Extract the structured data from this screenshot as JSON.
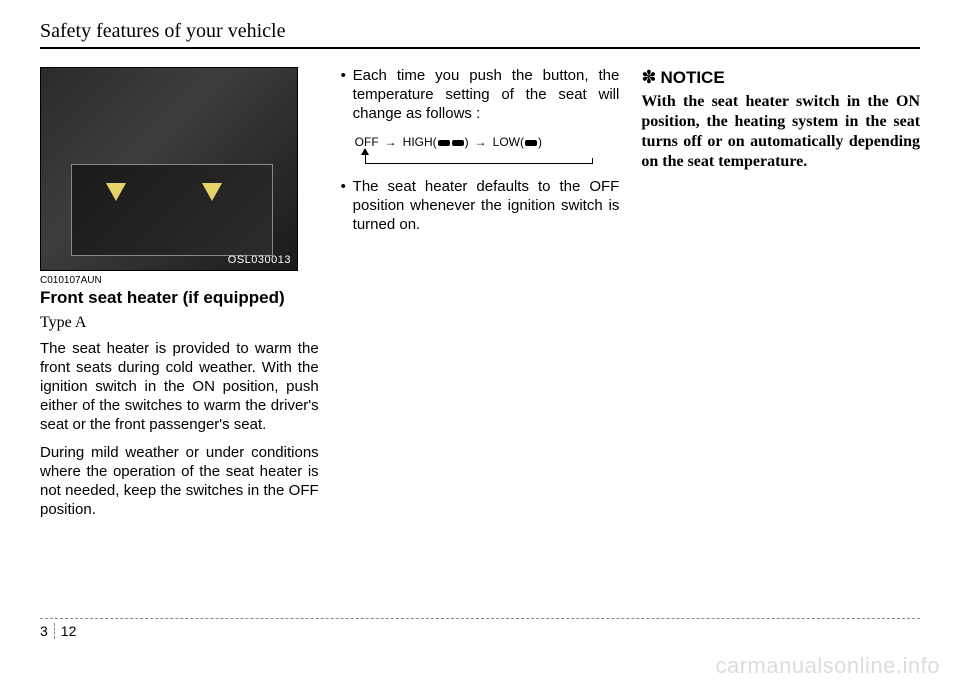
{
  "header": {
    "title": "Safety features of your vehicle"
  },
  "figure": {
    "label": "OSL030013"
  },
  "col1": {
    "code": "C010107AUN",
    "subhead": "Front seat heater (if equipped)",
    "type": "Type A",
    "p1": "The seat heater is provided to warm the front seats during cold weather. With the ignition switch in the ON position, push either of the switches to warm the driver's seat or the front passenger's seat.",
    "p2": "During mild weather or under conditions where the operation of the seat heater is not needed, keep the switches in the  OFF position."
  },
  "col2": {
    "bullet1": "Each time you push the button, the temperature setting of the seat will change as follows :",
    "cycle": {
      "off": "OFF",
      "arrow": "→",
      "high": "HIGH(",
      "low": "LOW(",
      "close": ")"
    },
    "bullet2": "The seat heater defaults to the OFF position whenever the ignition switch is turned on."
  },
  "col3": {
    "notice_sym": "✽",
    "notice_head": "NOTICE",
    "notice_body": "With the seat heater switch in the ON position, the heating system in the seat turns off or on automatically depending on the seat temperature."
  },
  "footer": {
    "section": "3",
    "page": "12"
  },
  "watermark": "carmanualsonline.info"
}
